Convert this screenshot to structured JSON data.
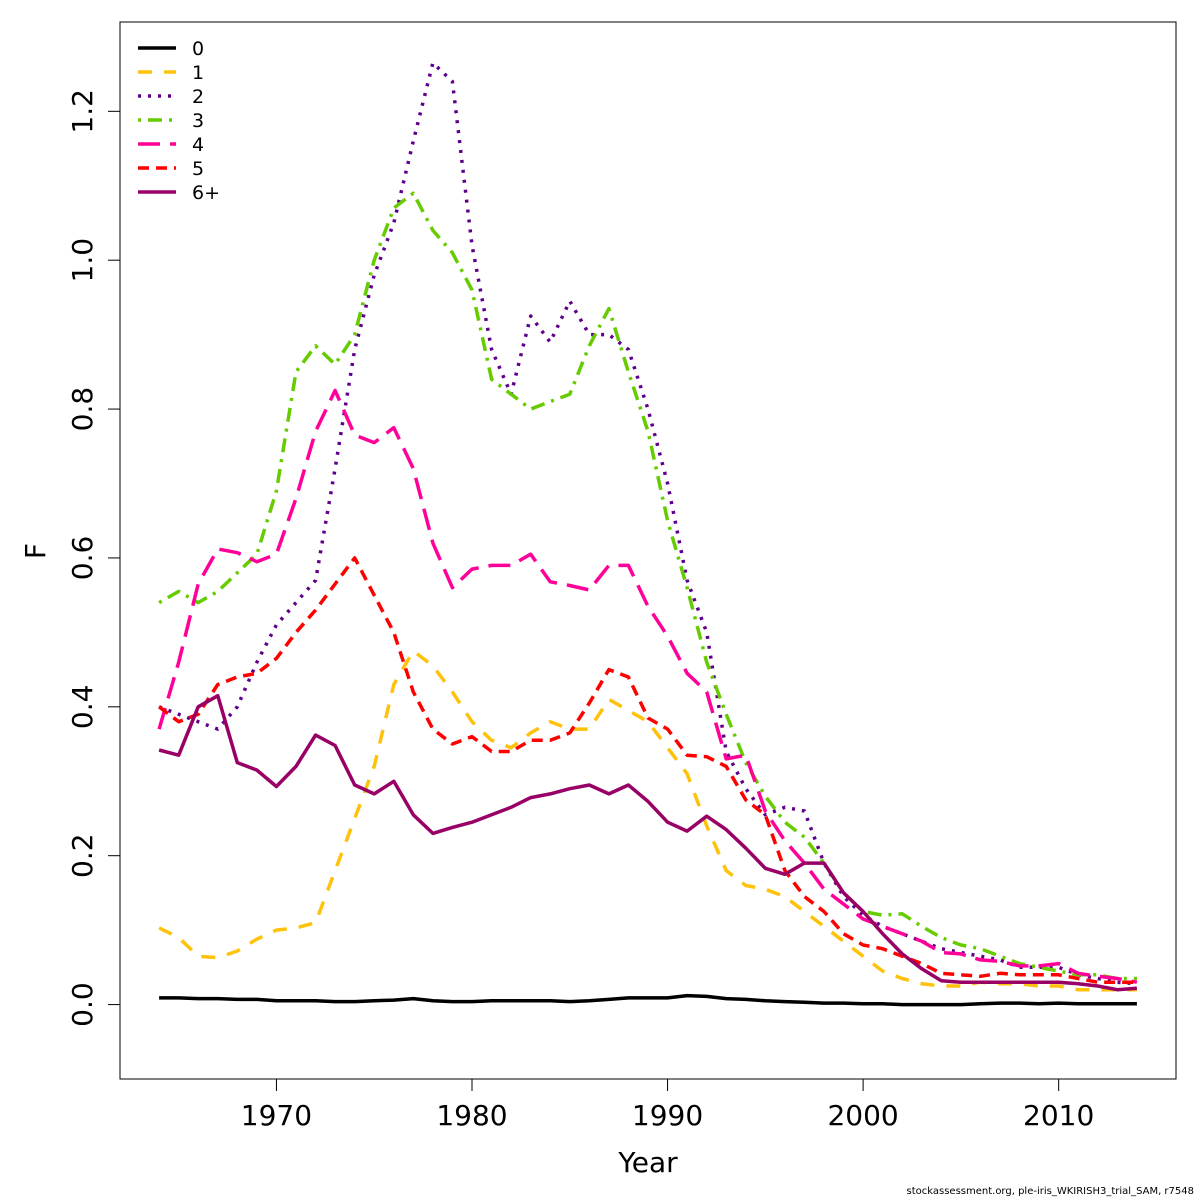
{
  "chart_data": {
    "type": "line",
    "title": "",
    "xlabel": "Year",
    "ylabel": "F",
    "xlim": [
      1962,
      2016
    ],
    "ylim": [
      -0.1,
      1.32
    ],
    "x_ticks": [
      1970,
      1980,
      1990,
      2000,
      2010
    ],
    "y_ticks": [
      0.0,
      0.2,
      0.4,
      0.6,
      0.8,
      1.0,
      1.2
    ],
    "y_tick_labels": [
      "0.0",
      "0.2",
      "0.4",
      "0.6",
      "0.8",
      "1.0",
      "1.2"
    ],
    "x_tick_labels": [
      "1970",
      "1980",
      "1990",
      "2000",
      "2010"
    ],
    "legend_position": "top-left",
    "grid": false,
    "x": [
      1964,
      1965,
      1966,
      1967,
      1968,
      1969,
      1970,
      1971,
      1972,
      1973,
      1974,
      1975,
      1976,
      1977,
      1978,
      1979,
      1980,
      1981,
      1982,
      1983,
      1984,
      1985,
      1986,
      1987,
      1988,
      1989,
      1990,
      1991,
      1992,
      1993,
      1994,
      1995,
      1996,
      1997,
      1998,
      1999,
      2000,
      2001,
      2002,
      2003,
      2004,
      2005,
      2006,
      2007,
      2008,
      2009,
      2010,
      2011,
      2012,
      2013,
      2014
    ],
    "series": [
      {
        "name": "0",
        "color": "#000000",
        "dash": "solid",
        "values": [
          0.009,
          0.009,
          0.008,
          0.008,
          0.007,
          0.007,
          0.005,
          0.005,
          0.005,
          0.004,
          0.004,
          0.005,
          0.006,
          0.008,
          0.005,
          0.004,
          0.004,
          0.005,
          0.005,
          0.005,
          0.005,
          0.004,
          0.005,
          0.007,
          0.009,
          0.009,
          0.009,
          0.012,
          0.011,
          0.008,
          0.007,
          0.005,
          0.004,
          0.003,
          0.002,
          0.002,
          0.001,
          0.001,
          0.0,
          0.0,
          0.0,
          0.0,
          0.001,
          0.002,
          0.002,
          0.001,
          0.002,
          0.001,
          0.001,
          0.001,
          0.001
        ]
      },
      {
        "name": "1",
        "color": "#FFC20A",
        "dash": "dashed",
        "values": [
          0.103,
          0.09,
          0.065,
          0.063,
          0.072,
          0.088,
          0.1,
          0.103,
          0.11,
          0.18,
          0.25,
          0.32,
          0.43,
          0.475,
          0.455,
          0.42,
          0.38,
          0.355,
          0.345,
          0.365,
          0.38,
          0.37,
          0.37,
          0.41,
          0.395,
          0.38,
          0.345,
          0.31,
          0.24,
          0.18,
          0.16,
          0.155,
          0.145,
          0.125,
          0.105,
          0.085,
          0.065,
          0.045,
          0.035,
          0.028,
          0.025,
          0.025,
          0.03,
          0.028,
          0.028,
          0.025,
          0.025,
          0.02,
          0.02,
          0.02,
          0.02
        ]
      },
      {
        "name": "2",
        "color": "#5E008C",
        "dash": "dotted",
        "values": [
          0.4,
          0.39,
          0.38,
          0.37,
          0.4,
          0.46,
          0.51,
          0.54,
          0.57,
          0.72,
          0.88,
          0.98,
          1.05,
          1.16,
          1.265,
          1.24,
          1.02,
          0.88,
          0.82,
          0.925,
          0.89,
          0.945,
          0.9,
          0.9,
          0.88,
          0.8,
          0.7,
          0.57,
          0.5,
          0.34,
          0.29,
          0.255,
          0.265,
          0.26,
          0.19,
          0.145,
          0.12,
          0.105,
          0.095,
          0.085,
          0.075,
          0.07,
          0.065,
          0.06,
          0.05,
          0.05,
          0.05,
          0.04,
          0.035,
          0.03,
          0.028
        ]
      },
      {
        "name": "3",
        "color": "#66CC00",
        "dash": "dotdash",
        "values": [
          0.54,
          0.555,
          0.54,
          0.555,
          0.58,
          0.605,
          0.69,
          0.85,
          0.885,
          0.86,
          0.9,
          1.0,
          1.07,
          1.09,
          1.04,
          1.01,
          0.96,
          0.84,
          0.82,
          0.8,
          0.81,
          0.82,
          0.885,
          0.935,
          0.85,
          0.77,
          0.65,
          0.56,
          0.46,
          0.39,
          0.325,
          0.28,
          0.245,
          0.225,
          0.19,
          0.15,
          0.125,
          0.12,
          0.122,
          0.105,
          0.09,
          0.08,
          0.075,
          0.065,
          0.055,
          0.05,
          0.045,
          0.04,
          0.04,
          0.035,
          0.035
        ]
      },
      {
        "name": "4",
        "color": "#FF0099",
        "dash": "longdash",
        "values": [
          0.37,
          0.46,
          0.565,
          0.612,
          0.607,
          0.595,
          0.605,
          0.68,
          0.77,
          0.825,
          0.765,
          0.755,
          0.775,
          0.72,
          0.62,
          0.56,
          0.585,
          0.59,
          0.59,
          0.605,
          0.568,
          0.563,
          0.557,
          0.59,
          0.59,
          0.535,
          0.495,
          0.445,
          0.42,
          0.33,
          0.335,
          0.26,
          0.22,
          0.19,
          0.155,
          0.135,
          0.115,
          0.105,
          0.095,
          0.085,
          0.07,
          0.068,
          0.06,
          0.058,
          0.052,
          0.052,
          0.055,
          0.042,
          0.038,
          0.035,
          0.03
        ]
      },
      {
        "name": "5",
        "color": "#FF0000",
        "dash": "shortdash",
        "values": [
          0.4,
          0.38,
          0.39,
          0.43,
          0.44,
          0.445,
          0.465,
          0.5,
          0.53,
          0.565,
          0.6,
          0.55,
          0.5,
          0.42,
          0.37,
          0.35,
          0.36,
          0.34,
          0.34,
          0.355,
          0.355,
          0.365,
          0.405,
          0.45,
          0.44,
          0.385,
          0.37,
          0.335,
          0.333,
          0.32,
          0.275,
          0.255,
          0.18,
          0.145,
          0.125,
          0.095,
          0.08,
          0.075,
          0.065,
          0.055,
          0.042,
          0.04,
          0.038,
          0.042,
          0.04,
          0.04,
          0.04,
          0.035,
          0.03,
          0.03,
          0.03
        ]
      },
      {
        "name": "6+",
        "color": "#990066",
        "dash": "solid",
        "values": [
          0.342,
          0.335,
          0.4,
          0.415,
          0.325,
          0.315,
          0.293,
          0.32,
          0.362,
          0.348,
          0.295,
          0.283,
          0.3,
          0.255,
          0.23,
          0.238,
          0.245,
          0.255,
          0.265,
          0.278,
          0.283,
          0.29,
          0.295,
          0.283,
          0.295,
          0.273,
          0.245,
          0.233,
          0.253,
          0.235,
          0.21,
          0.183,
          0.175,
          0.19,
          0.19,
          0.15,
          0.125,
          0.095,
          0.068,
          0.048,
          0.032,
          0.03,
          0.03,
          0.03,
          0.03,
          0.03,
          0.03,
          0.028,
          0.025,
          0.02,
          0.022
        ]
      }
    ]
  },
  "footer": {
    "text": "stockassessment.org, ple-iris_WKIRISH3_trial_SAM, r7548"
  }
}
